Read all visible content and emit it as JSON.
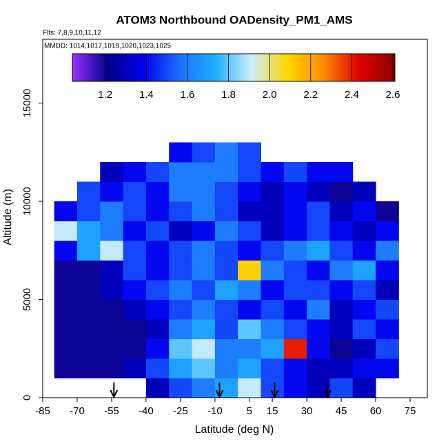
{
  "chart_data": {
    "type": "heatmap",
    "title": "ATOM3 Northbound OADensity_PM1_AMS",
    "subtitle": "Flts: 7,8,9,10,11,12",
    "annotation": "MMDD: 1014,1017,1019,1020,1023,1025",
    "xlabel": "Latitude (deg N)",
    "ylabel": "Altitude (m)",
    "xlim": [
      -85,
      82.5
    ],
    "xticks": [
      -85,
      -70,
      -55,
      -40,
      -25,
      -10,
      5,
      15,
      30,
      45,
      60,
      75
    ],
    "ylim": [
      0,
      18250
    ],
    "yticks": [
      0,
      5000,
      10000,
      15000
    ],
    "x_edges": [
      -80,
      -70,
      -60,
      -50,
      -40,
      -30,
      -20,
      -10,
      0,
      10,
      20,
      30,
      40,
      50,
      60,
      70,
      80
    ],
    "y_edges": [
      0,
      1000,
      2000,
      3000,
      4000,
      5000,
      6000,
      7000,
      8000,
      9000,
      10000,
      11000,
      12000,
      13000
    ],
    "values": [
      [
        null,
        null,
        null,
        null,
        1.3,
        1.5,
        1.6,
        1.7,
        1.9,
        1.5,
        1.4,
        1.3,
        1.5,
        1.3,
        null,
        null
      ],
      [
        1.2,
        1.2,
        1.2,
        1.3,
        1.5,
        1.7,
        1.8,
        1.6,
        1.7,
        1.5,
        1.4,
        1.3,
        1.3,
        1.4,
        1.4,
        null
      ],
      [
        1.2,
        1.2,
        1.2,
        1.2,
        1.4,
        1.8,
        1.9,
        1.6,
        1.6,
        1.7,
        2.4,
        1.4,
        1.2,
        1.3,
        1.5,
        null
      ],
      [
        1.2,
        1.2,
        1.2,
        1.2,
        1.3,
        1.6,
        1.7,
        1.5,
        1.8,
        1.6,
        1.5,
        1.4,
        1.3,
        1.5,
        1.4,
        null
      ],
      [
        1.2,
        1.2,
        1.2,
        1.3,
        1.4,
        1.5,
        1.6,
        1.5,
        1.4,
        1.5,
        1.4,
        1.6,
        1.3,
        1.4,
        1.5,
        null
      ],
      [
        1.2,
        1.2,
        1.3,
        1.4,
        1.5,
        1.6,
        1.5,
        1.7,
        1.6,
        1.4,
        1.5,
        1.5,
        1.4,
        1.5,
        1.3,
        null
      ],
      [
        1.2,
        1.2,
        1.3,
        1.5,
        1.4,
        1.5,
        1.6,
        1.5,
        2.1,
        1.6,
        1.5,
        1.4,
        1.6,
        1.7,
        1.4,
        null
      ],
      [
        1.4,
        1.7,
        1.9,
        1.5,
        1.4,
        1.5,
        1.6,
        1.5,
        1.4,
        1.5,
        1.6,
        1.7,
        1.5,
        1.4,
        1.6,
        null
      ],
      [
        1.9,
        1.7,
        1.6,
        1.4,
        1.5,
        1.3,
        1.4,
        1.6,
        1.5,
        1.3,
        1.4,
        1.5,
        1.4,
        1.3,
        1.4,
        null
      ],
      [
        1.4,
        1.5,
        1.6,
        1.5,
        1.4,
        1.5,
        1.6,
        1.5,
        1.3,
        1.3,
        1.4,
        1.5,
        1.3,
        1.4,
        1.2,
        null
      ],
      [
        null,
        1.5,
        1.4,
        1.5,
        1.4,
        1.6,
        1.6,
        1.5,
        1.4,
        1.3,
        1.4,
        1.3,
        1.2,
        1.3,
        null,
        null
      ],
      [
        null,
        null,
        1.3,
        1.4,
        1.5,
        1.6,
        1.6,
        1.6,
        1.5,
        1.4,
        1.5,
        1.4,
        1.4,
        null,
        null,
        null
      ],
      [
        null,
        null,
        null,
        null,
        null,
        1.4,
        1.5,
        1.6,
        1.5,
        null,
        null,
        null,
        null,
        null,
        null,
        null
      ]
    ],
    "arrows_lat": [
      -54,
      -8,
      16,
      39
    ],
    "colorbar": {
      "lim": [
        1.04,
        2.61
      ],
      "ticks": [
        1.2,
        1.4,
        1.6,
        1.8,
        {
          "value": 2,
          "label": "2.0"
        },
        2.2,
        2.4,
        2.6
      ],
      "colors": [
        "#9b30ff",
        "#00008b",
        "#0000ee",
        "#1e6fff",
        "#1eb0ff",
        "#cfeeff",
        "#ffd700",
        "#ff8c00",
        "#e00000",
        "#8b0000"
      ]
    }
  }
}
